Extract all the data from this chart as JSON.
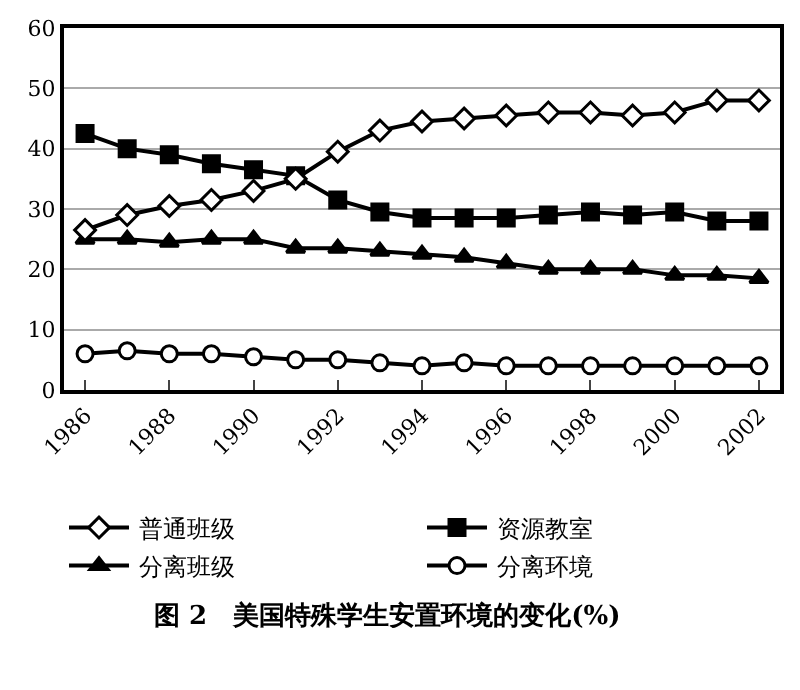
{
  "chart_data": {
    "type": "line",
    "title": "图 2　美国特殊学生安置环境的变化(%)",
    "categories": [
      "1986",
      null,
      "1988",
      null,
      "1990",
      null,
      "1992",
      null,
      "1994",
      null,
      "1996",
      null,
      "1998",
      null,
      "2000",
      null,
      "2002"
    ],
    "series": [
      {
        "name": "普通班级",
        "color": "#000000",
        "marker": "diamond",
        "values": [
          26.5,
          29,
          30.5,
          31.5,
          33,
          35,
          39.5,
          43,
          44.5,
          45,
          45.5,
          46,
          46,
          45.5,
          46,
          48,
          48
        ]
      },
      {
        "name": "资源教室",
        "color": "#000000",
        "marker": "square",
        "values": [
          42.5,
          40,
          39,
          37.5,
          36.5,
          35.5,
          31.5,
          29.5,
          28.5,
          28.5,
          28.5,
          29,
          29.5,
          29,
          29.5,
          28,
          28
        ]
      },
      {
        "name": "分离班级",
        "color": "#000000",
        "marker": "triangle",
        "values": [
          25,
          25,
          24.5,
          25,
          25,
          23.5,
          23.5,
          23,
          22.5,
          22,
          21,
          20,
          20,
          20,
          19,
          19,
          18.5
        ]
      },
      {
        "name": "分离环境",
        "color": "#000000",
        "marker": "circle",
        "values": [
          6,
          6.5,
          6,
          6,
          5.5,
          5,
          5,
          4.5,
          4,
          4.5,
          4,
          4,
          4,
          4,
          4,
          4,
          4
        ]
      }
    ],
    "ylim": [
      0,
      60
    ],
    "yticks": [
      0,
      10,
      20,
      30,
      40,
      50,
      60
    ],
    "grid": "y",
    "legend": "bottom",
    "line_style": "solid"
  }
}
